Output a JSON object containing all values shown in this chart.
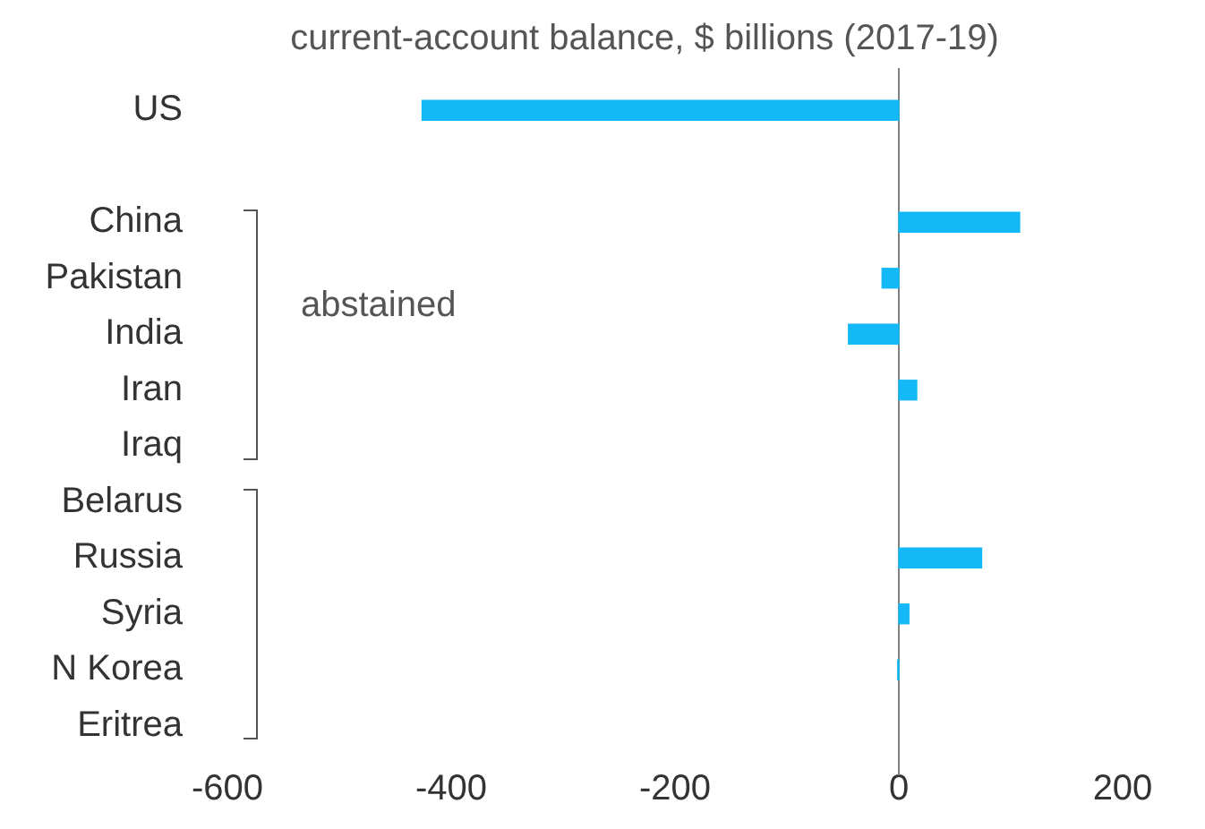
{
  "chart_data": {
    "type": "bar",
    "orientation": "horizontal",
    "title": "current-account balance, $ billions (2017-19)",
    "categories": [
      "US",
      null,
      "China",
      "Pakistan",
      "India",
      "Iran",
      "Iraq",
      "Belarus",
      "Russia",
      "Syria",
      "N Korea",
      "Eritrea"
    ],
    "values": [
      -426,
      null,
      108,
      -15,
      -45,
      16,
      null,
      null,
      74,
      9,
      -1,
      null
    ],
    "color": "#12b9f6",
    "xlim": [
      -600,
      200
    ],
    "xticks": [
      -600,
      -400,
      -200,
      0,
      200
    ],
    "ref_lines": [
      {
        "axis": "x",
        "value": 0,
        "color": "#808080"
      }
    ],
    "annotations": [
      "abstained"
    ],
    "grid": false,
    "legend": false
  }
}
